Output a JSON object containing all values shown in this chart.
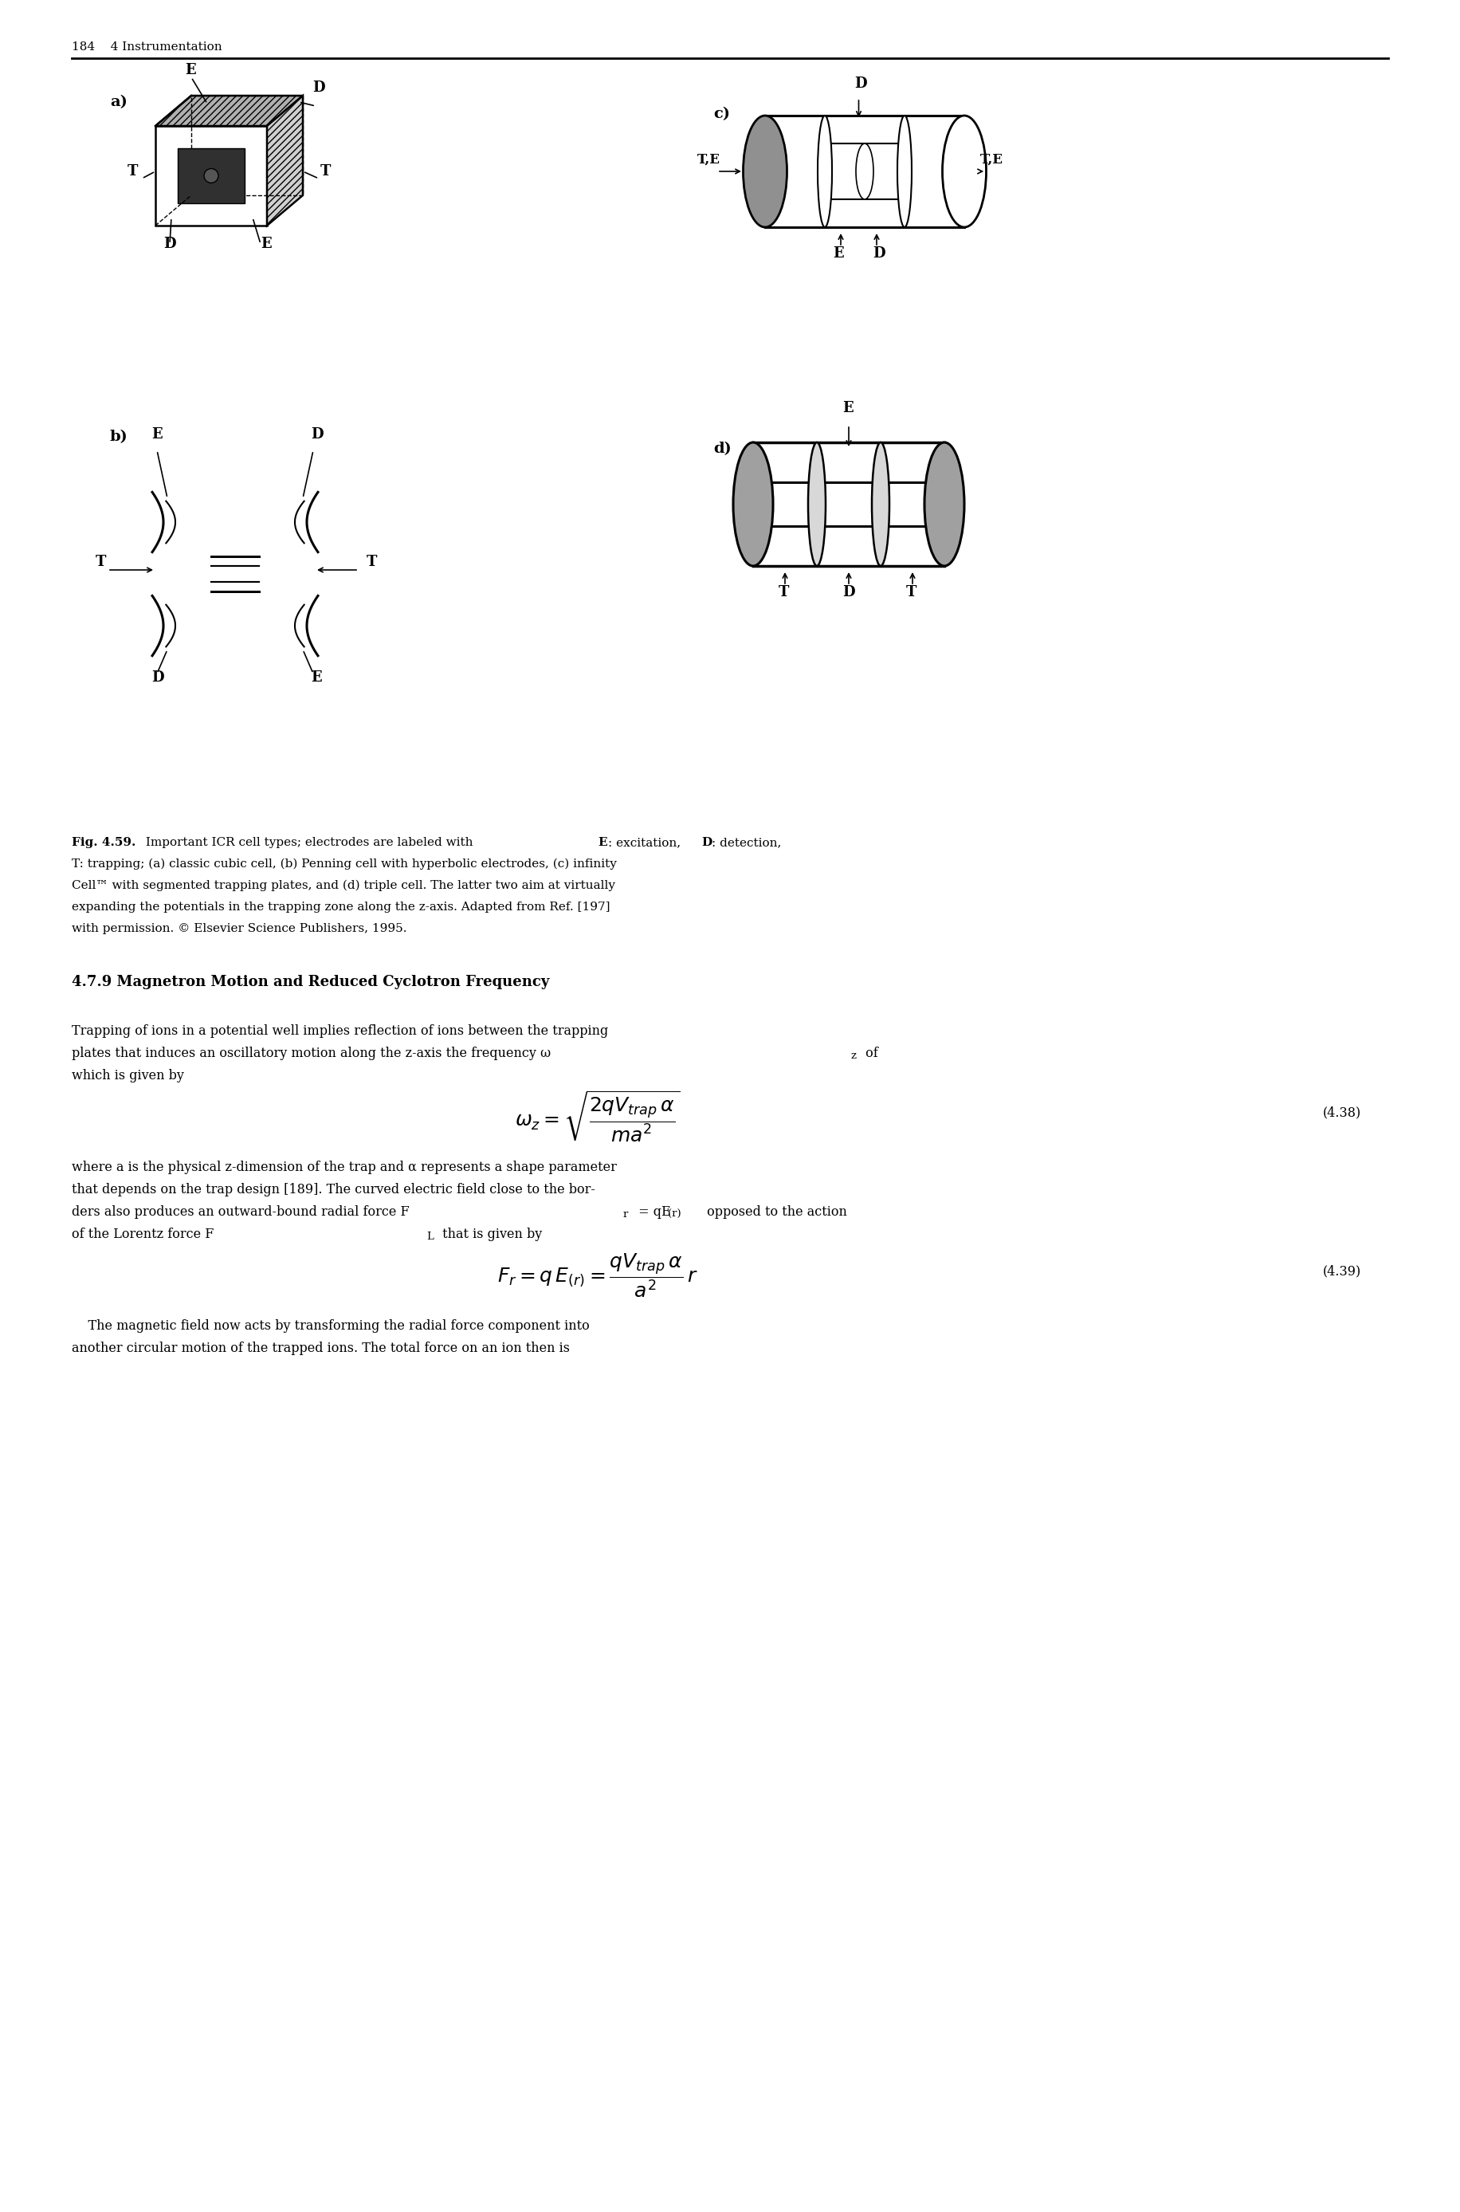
{
  "page_header": "184    4 Instrumentation",
  "fig_caption_bold": "Fig. 4.59.",
  "fig_caption_rest": " Important ICR cell types; electrodes are labeled with ",
  "fig_caption_E": "E",
  "fig_caption_mid1": ": excitation, ",
  "fig_caption_D": "D",
  "fig_caption_mid2": ": detection,",
  "fig_caption_line2": "T: trapping; (a) classic cubic cell, (b) Penning cell with hyperbolic electrodes, (c) infinity",
  "fig_caption_line3": "Cell™ with segmented trapping plates, and (d) triple cell. The latter two aim at virtually",
  "fig_caption_line4": "expanding the potentials in the trapping zone along the z-axis. Adapted from Ref. [197]",
  "fig_caption_line5": "with permission. © Elsevier Science Publishers, 1995.",
  "section_title": "4.7.9 Magnetron Motion and Reduced Cyclotron Frequency",
  "para1_line1": "Trapping of ions in a potential well implies reflection of ions between the trapping",
  "para1_line2": "plates that induces an oscillatory motion along the z-axis the frequency ω",
  "para1_line2_sub": "z",
  "para1_line2_end": " of",
  "para1_line3": "which is given by",
  "eq138_label": "(4.38)",
  "eq139_label": "(4.39)",
  "para2_line1": "where a is the physical z-dimension of the trap and α represents a shape parameter",
  "para2_line2": "that depends on the trap design [189]. The curved electric field close to the bor-",
  "para2_line3": "ders also produces an outward-bound radial force F",
  "para2_line3_sub": "r",
  "para2_line3_mid": " = qE",
  "para2_line3_sub2": "(r)",
  "para2_line3_end": " opposed to the action",
  "para2_line4": "of the Lorentz force F",
  "para2_line4_sub": "L",
  "para2_line4_end": " that is given by",
  "para3_line1": "    The magnetic field now acts by transforming the radial force component into",
  "para3_line2": "another circular motion of the trapped ions. The total force on an ion then is",
  "background_color": "#ffffff",
  "text_color": "#000000",
  "font_size_body": 11.5,
  "font_size_header": 11,
  "font_size_caption": 11,
  "font_size_section": 13
}
